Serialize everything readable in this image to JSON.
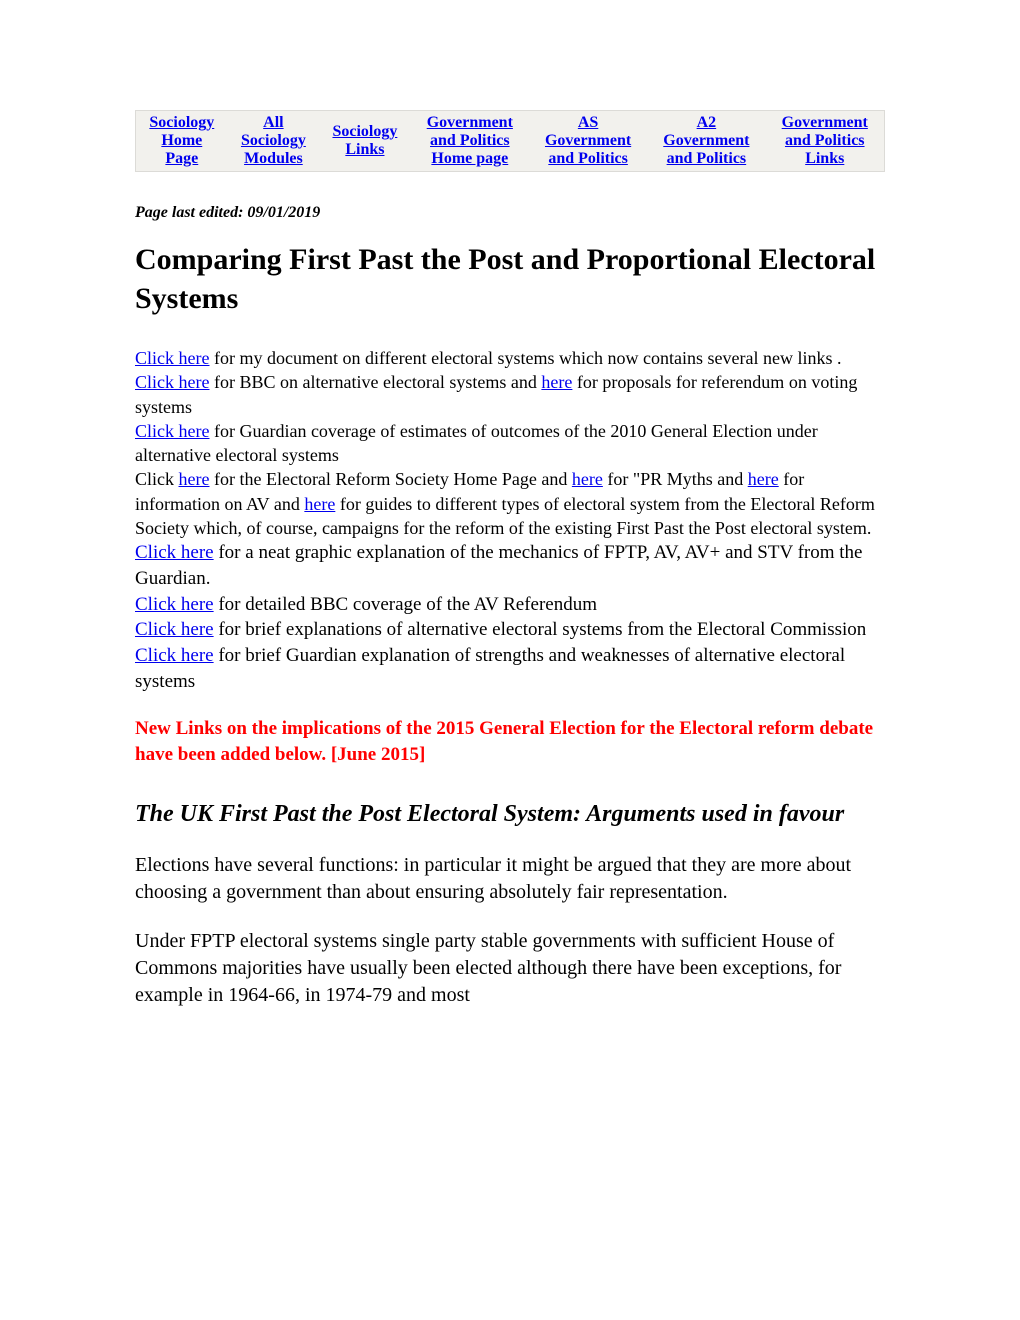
{
  "nav": {
    "items": [
      {
        "line1": "Sociology",
        "line2": "Home",
        "line3": "Page"
      },
      {
        "line1": "All",
        "line2": "Sociology",
        "line3": "Modules"
      },
      {
        "line1": "",
        "line2": "Sociology",
        "line3": "Links"
      },
      {
        "line1": "Government",
        "line2": "and Politics",
        "line3": "Home page"
      },
      {
        "line1": "AS",
        "line2": "Government",
        "line3": "and Politics"
      },
      {
        "line1": "A2",
        "line2": "Government",
        "line3": "and Politics"
      },
      {
        "line1": "Government",
        "line2": "and Politics",
        "line3": "Links"
      }
    ]
  },
  "edited_label": "Page last edited: 09/01/2019",
  "title": "Comparing First Past the Post and Proportional Electoral Systems",
  "links": {
    "click_here": "Click here",
    "here": "here",
    "l1_rest": " for my document on different electoral systems which now contains several new links .",
    "l2_mid": " for BBC on alternative electoral systems and ",
    "l2_rest": " for proposals for referendum on voting systems",
    "l3_rest": " for Guardian coverage of estimates of outcomes of the 2010 General Election under alternative electoral systems",
    "l4_pre": "Click ",
    "l4_mid1": " for  the Electoral Reform Society Home Page and ",
    "l4_mid2": " for \"PR Myths and ",
    "l4_mid3": " for information on AV and ",
    "l4_rest": " for guides to different types of electoral system from the Electoral Reform Society which, of course, campaigns for the reform of the existing First Past the Post electoral system.",
    "l5_rest": " for a neat graphic explanation of the mechanics of FPTP, AV, AV+ and STV from the Guardian.",
    "l6_rest": " for detailed BBC coverage of the AV Referendum",
    "l7_pre": " ",
    "l7_rest": "  for brief explanations of alternative electoral systems from the Electoral Commission",
    "l8_rest": " for brief Guardian explanation of strengths and weaknesses of alternative electoral systems"
  },
  "red_notice": "New Links on the implications of the 2015 General Election for the Electoral reform debate have been added below. [June 2015]",
  "subhead": "The UK First Past the Post Electoral System: Arguments used in favour",
  "para1": "Elections have several functions: in particular it might be argued that they are more about choosing a government than about ensuring absolutely fair representation.",
  "para2": "Under FPTP electoral systems single party stable governments with sufficient House of Commons majorities have usually been elected although there have been exceptions, for example in 1964-66, in 1974-79 and most"
}
